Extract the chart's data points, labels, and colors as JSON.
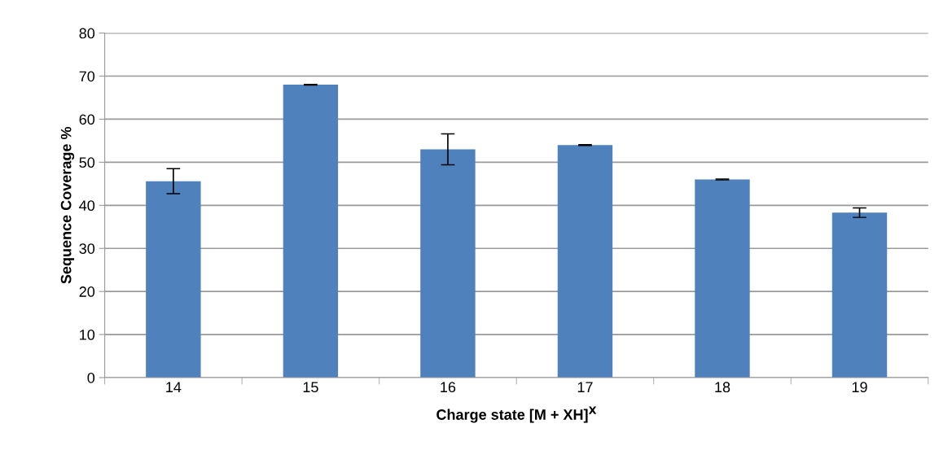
{
  "chart_data": {
    "type": "bar",
    "xlabel": "Charge state [M + XH]$^{X}$",
    "ylabel": "Sequence Coverage %",
    "categories": [
      "14",
      "15",
      "16",
      "17",
      "18",
      "19"
    ],
    "values": [
      45.6,
      68.0,
      53.0,
      54.0,
      46.0,
      38.3
    ],
    "errors": [
      2.9,
      0.1,
      3.6,
      0.1,
      0.1,
      1.1
    ],
    "color": "#4f81bd",
    "ylim": [
      0,
      80
    ],
    "yticks": [
      0,
      10,
      20,
      30,
      40,
      50,
      60,
      70,
      80
    ],
    "grid": "y"
  }
}
